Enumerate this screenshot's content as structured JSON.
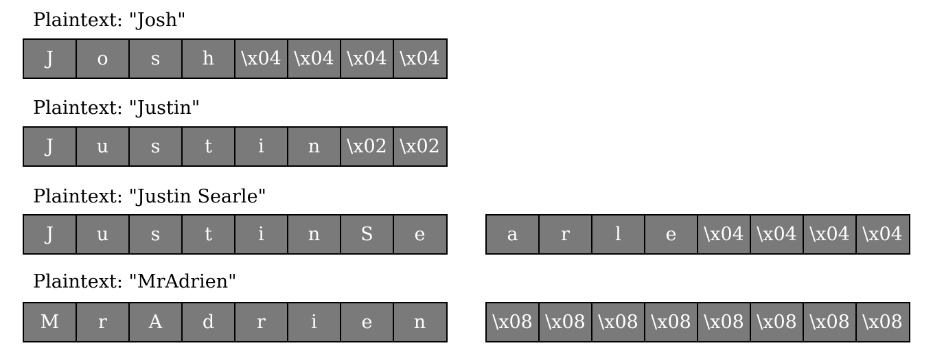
{
  "examples": [
    {
      "label": "Plaintext: \"Josh\"",
      "blocks": [
        [
          "J",
          "o",
          "s",
          "h",
          "\\x04",
          "\\x04",
          "\\x04",
          "\\x04"
        ]
      ]
    },
    {
      "label": "Plaintext: \"Justin\"",
      "blocks": [
        [
          "J",
          "u",
          "s",
          "t",
          "i",
          "n",
          "\\x02",
          "\\x02"
        ]
      ]
    },
    {
      "label": "Plaintext: \"Justin Searle\"",
      "blocks": [
        [
          "J",
          "u",
          "s",
          "t",
          "i",
          "n",
          "S",
          "e"
        ],
        [
          "a",
          "r",
          "l",
          "e",
          "\\x04",
          "\\x04",
          "\\x04",
          "\\x04"
        ]
      ]
    },
    {
      "label": "Plaintext: \"MrAdrien\"",
      "blocks": [
        [
          "M",
          "r",
          "A",
          "d",
          "r",
          "i",
          "e",
          "n"
        ],
        [
          "\\x08",
          "\\x08",
          "\\x08",
          "\\x08",
          "\\x08",
          "\\x08",
          "\\x08",
          "\\x08"
        ]
      ]
    }
  ]
}
